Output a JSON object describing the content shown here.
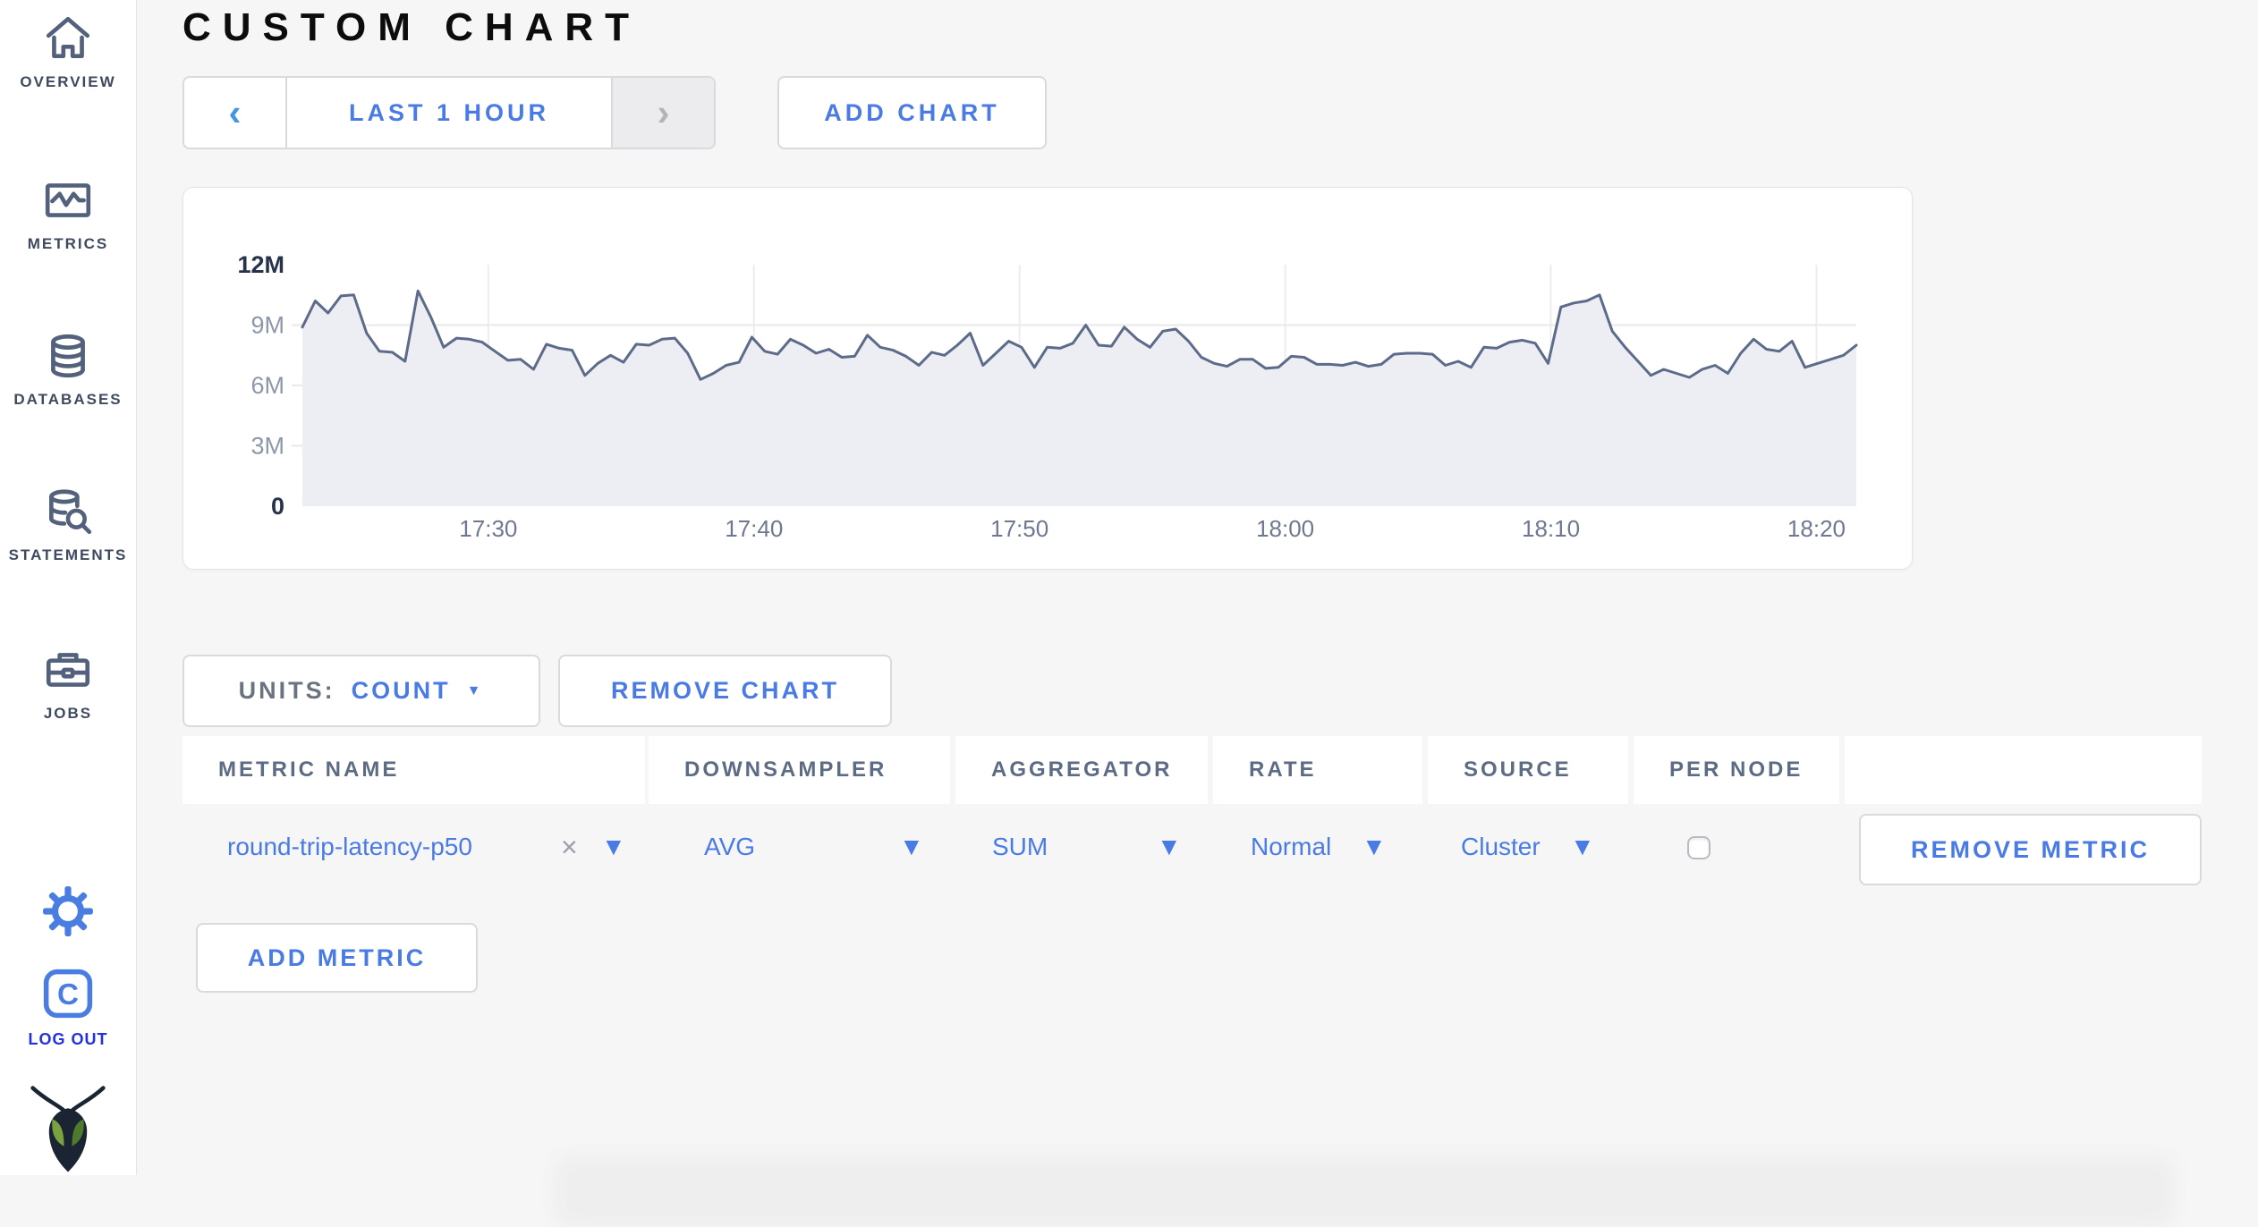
{
  "sidebar": {
    "items": [
      {
        "label": "OVERVIEW",
        "icon": "home-icon"
      },
      {
        "label": "METRICS",
        "icon": "metrics-icon"
      },
      {
        "label": "DATABASES",
        "icon": "database-icon"
      },
      {
        "label": "STATEMENTS",
        "icon": "statements-icon"
      },
      {
        "label": "JOBS",
        "icon": "briefcase-icon"
      }
    ],
    "settings_icon": "gear-icon",
    "logout": {
      "label": "LOG OUT",
      "icon": "cockroach-c-icon"
    },
    "logo_icon": "cockroachdb-bug-logo"
  },
  "header": {
    "title": "CUSTOM CHART"
  },
  "toolbar": {
    "prev_arrow": "‹",
    "next_arrow": "›",
    "time_range_label": "LAST 1 HOUR",
    "add_chart_label": "ADD CHART"
  },
  "units": {
    "label": "UNITS:",
    "value": "COUNT",
    "caret": "▼"
  },
  "remove_chart_label": "REMOVE CHART",
  "table": {
    "columns": [
      "METRIC NAME",
      "DOWNSAMPLER",
      "AGGREGATOR",
      "RATE",
      "SOURCE",
      "PER NODE"
    ],
    "row": {
      "metric_name": "round-trip-latency-p50",
      "clear": "×",
      "caret": "▼",
      "downsampler": "AVG",
      "aggregator": "SUM",
      "rate": "Normal",
      "source": "Cluster",
      "per_node_checked": false,
      "remove_label": "REMOVE METRIC"
    }
  },
  "add_metric_label": "ADD METRIC",
  "colors": {
    "accent_blue": "#4a7be4",
    "logout_blue": "#2430e3",
    "chart_line": "#5d6b8a",
    "chart_fill": "#edeef3",
    "page_bg": "#f6f6f7",
    "header_text": "#5d6b85",
    "nav_slate": "#53617c"
  },
  "chart_data": {
    "type": "area",
    "title": "",
    "xlabel": "",
    "ylabel": "count",
    "x_start_time": "17:23",
    "x_end_time": "18:22",
    "x_tick_labels": [
      "17:30",
      "17:40",
      "17:50",
      "18:00",
      "18:10",
      "18:20"
    ],
    "x_tick_minutes": [
      7,
      17,
      27,
      37,
      47,
      57
    ],
    "x_total_minutes": 58.5,
    "ylim": [
      0,
      12000000
    ],
    "y_ticks": [
      {
        "label": "12M",
        "value": 12,
        "major": true
      },
      {
        "label": "9M",
        "value": 9,
        "major": false
      },
      {
        "label": "6M",
        "value": 6,
        "major": false
      },
      {
        "label": "3M",
        "value": 3,
        "major": false
      },
      {
        "label": "0",
        "value": 0,
        "major": true
      }
    ],
    "grid_y_values": [
      9,
      6,
      3
    ],
    "legend": "none",
    "series_name": "round-trip-latency-p50 (AVG/SUM)",
    "values_unit": "millions",
    "values": [
      8.9,
      10.2,
      9.6,
      10.45,
      10.5,
      8.6,
      7.7,
      7.65,
      7.2,
      10.7,
      9.4,
      7.9,
      8.35,
      8.3,
      8.15,
      7.7,
      7.25,
      7.3,
      6.8,
      8.05,
      7.85,
      7.75,
      6.5,
      7.1,
      7.5,
      7.15,
      8.05,
      8.0,
      8.3,
      8.35,
      7.6,
      6.3,
      6.6,
      7.0,
      7.15,
      8.4,
      7.7,
      7.55,
      8.3,
      8.0,
      7.6,
      7.8,
      7.4,
      7.45,
      8.5,
      7.9,
      7.75,
      7.45,
      7.0,
      7.65,
      7.5,
      8.0,
      8.6,
      7.0,
      7.6,
      8.2,
      7.9,
      6.9,
      7.9,
      7.85,
      8.1,
      9.0,
      8.0,
      7.95,
      8.9,
      8.3,
      7.9,
      8.7,
      8.8,
      8.2,
      7.4,
      7.1,
      6.95,
      7.3,
      7.3,
      6.85,
      6.9,
      7.45,
      7.4,
      7.05,
      7.05,
      7.0,
      7.15,
      6.95,
      7.05,
      7.55,
      7.6,
      7.6,
      7.55,
      7.0,
      7.2,
      6.9,
      7.9,
      7.85,
      8.15,
      8.25,
      8.1,
      7.1,
      9.9,
      10.1,
      10.2,
      10.5,
      8.7,
      7.9,
      7.2,
      6.5,
      6.8,
      6.6,
      6.4,
      6.8,
      7.0,
      6.6,
      7.6,
      8.3,
      7.8,
      7.7,
      8.2,
      6.9,
      7.1,
      7.3,
      7.5,
      8.0
    ]
  }
}
